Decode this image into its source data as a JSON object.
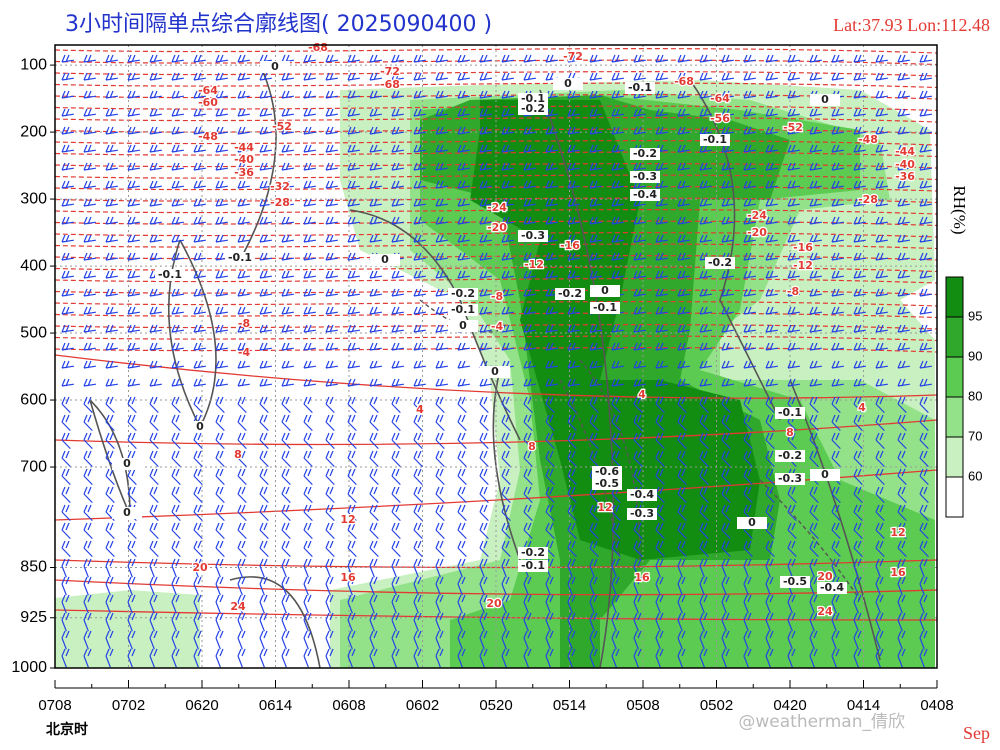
{
  "chart_data": {
    "type": "contour",
    "title": "3小时间隔单点综合廓线图( 2025090400 )",
    "location": "Lat:37.93  Lon:112.48",
    "x_label": "北京时",
    "month": "Sep",
    "watermark": "@weatherman_倩欣",
    "categories": [
      "0708",
      "0702",
      "0620",
      "0614",
      "0608",
      "0602",
      "0520",
      "0514",
      "0508",
      "0502",
      "0420",
      "0414",
      "0408"
    ],
    "ylim": [
      1000,
      70
    ],
    "yticks": [
      100,
      200,
      300,
      400,
      500,
      600,
      700,
      850,
      925,
      1000
    ],
    "grid": true,
    "colorbar": {
      "label": "RH(%)",
      "ticks": [
        60,
        70,
        80,
        90,
        95
      ],
      "colors": [
        "#ffffff",
        "#c9f0c0",
        "#93e28a",
        "#5ccb52",
        "#30a82b",
        "#138c12"
      ]
    },
    "temperature_color": "#e23a33",
    "omega_color": "#555555",
    "wind_color": "#2442e6",
    "temperature_labels": [
      -68,
      -72,
      -68,
      -64,
      -60,
      -48,
      -52,
      -44,
      -40,
      -36,
      -32,
      -28,
      -24,
      -20,
      -16,
      -12,
      -8,
      -4,
      -8,
      -4,
      4,
      8,
      12,
      16,
      20,
      24,
      20,
      16,
      12,
      8,
      4,
      4,
      8,
      12,
      16,
      20,
      24,
      -72,
      -68,
      -64,
      -56,
      -52,
      -48,
      -44,
      -40,
      -36,
      -28,
      -24,
      -20,
      -16,
      -12,
      -8
    ],
    "omega_labels": [
      -0.1,
      -0.2,
      -0.1,
      -0.1,
      -0.2,
      -0.3,
      -0.4,
      -0.3,
      -0.1,
      -0.1,
      0,
      -0.2,
      -0.1,
      0,
      -0.2,
      0,
      -0.1,
      -0.2,
      0,
      0,
      0,
      0,
      -0.6,
      -0.5,
      -0.4,
      -0.3,
      -0.1,
      -0.2,
      -0.3,
      0,
      0,
      -0.2,
      -0.1,
      -0.5,
      -0.4,
      0,
      0,
      0
    ]
  }
}
